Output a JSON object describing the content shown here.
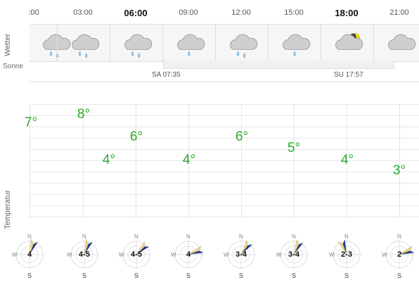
{
  "times": [
    {
      "label": ":00",
      "bold": false
    },
    {
      "label": "03:00",
      "bold": false
    },
    {
      "label": "06:00",
      "bold": true
    },
    {
      "label": "09:00",
      "bold": false
    },
    {
      "label": "12:00",
      "bold": false
    },
    {
      "label": "15:00",
      "bold": false
    },
    {
      "label": "18:00",
      "bold": true
    },
    {
      "label": "21:00",
      "bold": false
    }
  ],
  "labels": {
    "weather": "Wetter",
    "sun": "Sonne",
    "temperature": "Temperatur"
  },
  "weather": [
    {
      "icon": "cloud-rain-icon"
    },
    {
      "icon": "cloud-rain-icon"
    },
    {
      "icon": "cloud-rain-icon"
    },
    {
      "icon": "cloud-drizzle-icon"
    },
    {
      "icon": "cloud-rain-icon"
    },
    {
      "icon": "cloud-drizzle-icon"
    },
    {
      "icon": "cloud-moon-icon"
    },
    {
      "icon": "cloud-icon"
    }
  ],
  "sun": {
    "sunrise": "SA 07:35",
    "sunset": "SU 17:57"
  },
  "temperatures": [
    "7°",
    "8°",
    "4°",
    "6°",
    "4°",
    "6°",
    "5°",
    "4°",
    "3°"
  ],
  "wind": [
    {
      "speed": "4",
      "n": "N",
      "s": "S",
      "w": "W"
    },
    {
      "speed": "4-5",
      "n": "N",
      "s": "S",
      "w": "W"
    },
    {
      "speed": "4-5",
      "n": "N",
      "s": "S",
      "w": "W"
    },
    {
      "speed": "4",
      "n": "N",
      "s": "S",
      "w": "W"
    },
    {
      "speed": "3-4",
      "n": "N",
      "s": "S",
      "w": "W"
    },
    {
      "speed": "3-4",
      "n": "N",
      "s": "S",
      "w": "W"
    },
    {
      "speed": "2-3",
      "n": "N",
      "s": "S",
      "w": "W"
    },
    {
      "speed": "2",
      "n": "N",
      "s": "S",
      "w": "W"
    }
  ]
}
